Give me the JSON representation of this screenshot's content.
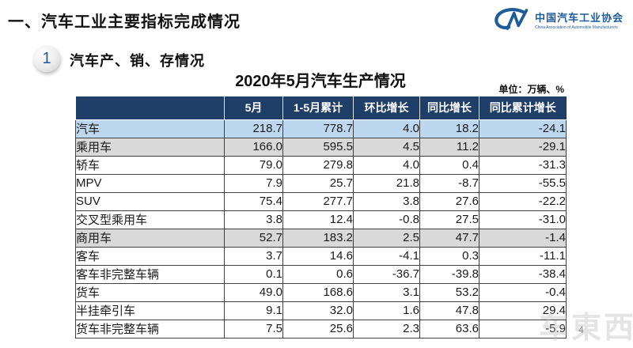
{
  "page": {
    "title": "一、汽车工业主要指标完成情况",
    "page_number": "4",
    "watermark": "车東西"
  },
  "logo": {
    "org_name_cn": "中国汽车工业协会",
    "org_name_en": "China Association of Automobile Manufacturers"
  },
  "section": {
    "number": "1",
    "title": "汽车产、销、存情况"
  },
  "table": {
    "title": "2020年5月汽车生产情况",
    "unit_label": "单位：万辆、%",
    "columns": [
      "",
      "5月",
      "1-5月累计",
      "环比增长",
      "同比增长",
      "同比累计增长"
    ],
    "rows": [
      {
        "label": "汽车",
        "indent": 0,
        "highlight": "blue",
        "values": [
          "218.7",
          "778.7",
          "4.0",
          "18.2",
          "-24.1"
        ]
      },
      {
        "label": "乘用车",
        "indent": 1,
        "highlight": "gray",
        "values": [
          "166.0",
          "595.5",
          "4.5",
          "11.2",
          "-29.1"
        ]
      },
      {
        "label": "轿车",
        "indent": 2,
        "highlight": "white",
        "values": [
          "79.0",
          "279.8",
          "4.0",
          "0.4",
          "-31.3"
        ]
      },
      {
        "label": "MPV",
        "indent": 2,
        "highlight": "white",
        "values": [
          "7.9",
          "25.7",
          "21.8",
          "-8.7",
          "-55.5"
        ]
      },
      {
        "label": "SUV",
        "indent": 2,
        "highlight": "white",
        "values": [
          "75.4",
          "277.7",
          "3.8",
          "27.6",
          "-22.2"
        ]
      },
      {
        "label": "交叉型乘用车",
        "indent": 2,
        "highlight": "white",
        "values": [
          "3.8",
          "12.4",
          "-0.8",
          "27.5",
          "-31.0"
        ]
      },
      {
        "label": "商用车",
        "indent": 1,
        "highlight": "gray",
        "values": [
          "52.7",
          "183.2",
          "2.5",
          "47.7",
          "-1.4"
        ]
      },
      {
        "label": "客车",
        "indent": 2,
        "highlight": "white",
        "values": [
          "3.7",
          "14.6",
          "-4.1",
          "0.3",
          "-11.1"
        ]
      },
      {
        "label": "客车非完整车辆",
        "indent": 3,
        "highlight": "white",
        "values": [
          "0.1",
          "0.6",
          "-36.7",
          "-39.8",
          "-38.4"
        ]
      },
      {
        "label": "货车",
        "indent": 2,
        "highlight": "white",
        "values": [
          "49.0",
          "168.6",
          "3.1",
          "53.2",
          "-0.4"
        ]
      },
      {
        "label": "半挂牵引车",
        "indent": 3,
        "highlight": "white",
        "values": [
          "9.1",
          "32.0",
          "1.6",
          "47.8",
          "29.4"
        ]
      },
      {
        "label": "货车非完整车辆",
        "indent": 3,
        "highlight": "white",
        "values": [
          "7.5",
          "25.6",
          "2.3",
          "63.6",
          "-5.9"
        ]
      }
    ]
  },
  "colors": {
    "header_bg": "#1F3F68",
    "row_highlight_blue": "#BDD7EE",
    "row_highlight_gray": "#D9D9D9",
    "accent_blue": "#1F5C99",
    "grid_line": "#404040"
  }
}
